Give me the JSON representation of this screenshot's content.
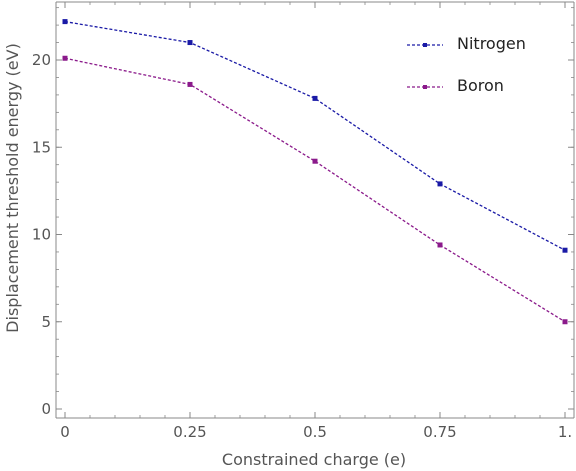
{
  "chart_data": {
    "type": "line",
    "title": "",
    "xlabel": "Constrained charge (e)",
    "ylabel": "Displacement threshold energy (eV)",
    "xlim": [
      0,
      1
    ],
    "ylim": [
      0,
      23
    ],
    "x": [
      0,
      0.25,
      0.5,
      0.75,
      1
    ],
    "x_tick_labels": [
      "0",
      "0.25",
      "0.5",
      "0.75",
      "1."
    ],
    "x_ticks": [
      0,
      0.25,
      0.5,
      0.75,
      1
    ],
    "y_ticks": [
      0,
      5,
      10,
      15,
      20
    ],
    "y_tick_labels": [
      "0",
      "5",
      "10",
      "15",
      "20"
    ],
    "grid": false,
    "legend_position": "top-right",
    "series": [
      {
        "name": "Nitrogen",
        "color": "#1a1aa6",
        "values": [
          22.2,
          21.0,
          17.8,
          12.9,
          9.1
        ]
      },
      {
        "name": "Boron",
        "color": "#8b1a8b",
        "values": [
          20.1,
          18.6,
          14.2,
          9.4,
          5.0
        ]
      }
    ]
  }
}
